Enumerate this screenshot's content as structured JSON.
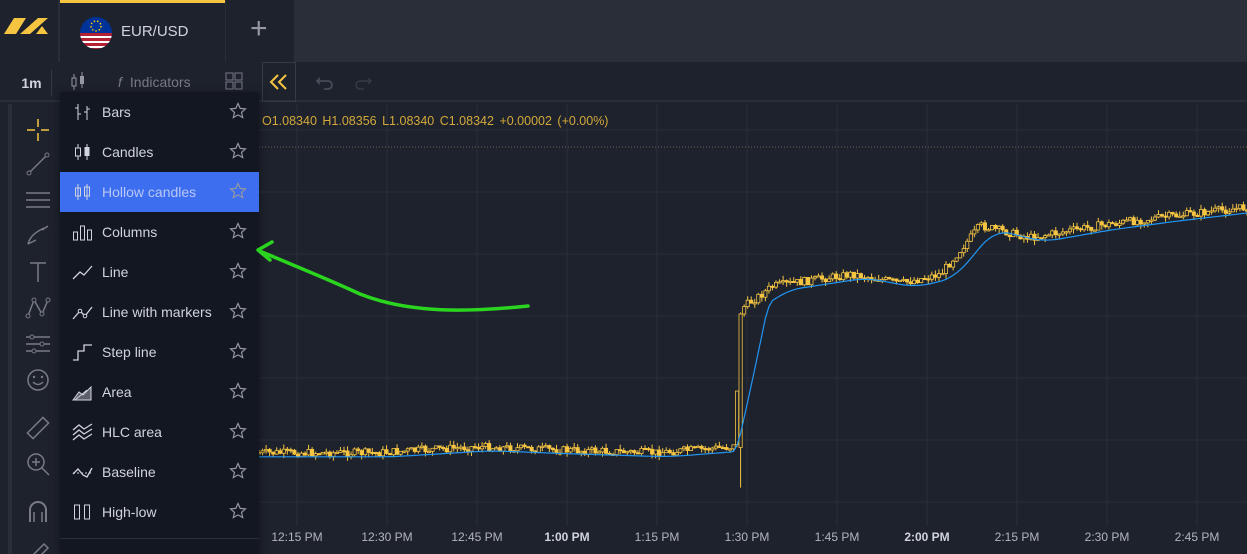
{
  "app": {
    "tab_symbol": "EUR/USD",
    "accent_color": "#f5c542"
  },
  "toolbar": {
    "interval": "1m",
    "indicators_label": "Indicators",
    "fx_glyph": "f",
    "icons": [
      "candles-icon",
      "layout-icon",
      "rewind-icon",
      "undo-icon",
      "redo-icon"
    ]
  },
  "left_tools": [
    "crosshair-icon",
    "trendline-icon",
    "fib-icon",
    "brush-icon",
    "text-icon",
    "pattern-icon",
    "forecast-icon",
    "emoji-icon",
    "ruler-icon",
    "zoom-icon",
    "magnet-icon",
    "pencil-icon"
  ],
  "chart_type_menu": {
    "items": [
      {
        "label": "Bars",
        "icon": "bars-icon"
      },
      {
        "label": "Candles",
        "icon": "candles-icon"
      },
      {
        "label": "Hollow candles",
        "icon": "hollow-candles-icon",
        "selected": true
      },
      {
        "label": "Columns",
        "icon": "columns-icon"
      },
      {
        "label": "Line",
        "icon": "line-icon"
      },
      {
        "label": "Line with markers",
        "icon": "line-markers-icon"
      },
      {
        "label": "Step line",
        "icon": "step-line-icon"
      },
      {
        "label": "Area",
        "icon": "area-icon"
      },
      {
        "label": "HLC area",
        "icon": "hlc-area-icon"
      },
      {
        "label": "Baseline",
        "icon": "baseline-icon"
      },
      {
        "label": "High-low",
        "icon": "high-low-icon"
      }
    ],
    "selected_color": "#3d6ef0"
  },
  "ohlc": {
    "open": "O1.08340",
    "high": "H1.08356",
    "low": "L1.08340",
    "close": "C1.08342",
    "change": "+0.00002",
    "change_pct": "(+0.00%)"
  },
  "chart_data": {
    "type": "candlestick",
    "x_ticks": [
      "12:15 PM",
      "12:30 PM",
      "12:45 PM",
      "1:00 PM",
      "1:15 PM",
      "1:30 PM",
      "1:45 PM",
      "2:00 PM",
      "2:15 PM",
      "2:30 PM",
      "2:45 PM"
    ],
    "x_ticks_bold": [
      "1:00 PM",
      "2:00 PM"
    ],
    "candle_color": "#f5c542",
    "ma_color": "#2196f3",
    "price_path_points": [
      [
        0,
        0.07
      ],
      [
        0.12,
        0.07
      ],
      [
        0.22,
        0.09
      ],
      [
        0.3,
        0.08
      ],
      [
        0.4,
        0.07
      ],
      [
        0.48,
        0.09
      ],
      [
        0.49,
        0.55
      ],
      [
        0.52,
        0.62
      ],
      [
        0.6,
        0.66
      ],
      [
        0.65,
        0.63
      ],
      [
        0.69,
        0.66
      ],
      [
        0.73,
        0.82
      ],
      [
        0.78,
        0.78
      ],
      [
        0.85,
        0.82
      ],
      [
        0.92,
        0.85
      ],
      [
        1.0,
        0.88
      ]
    ]
  }
}
